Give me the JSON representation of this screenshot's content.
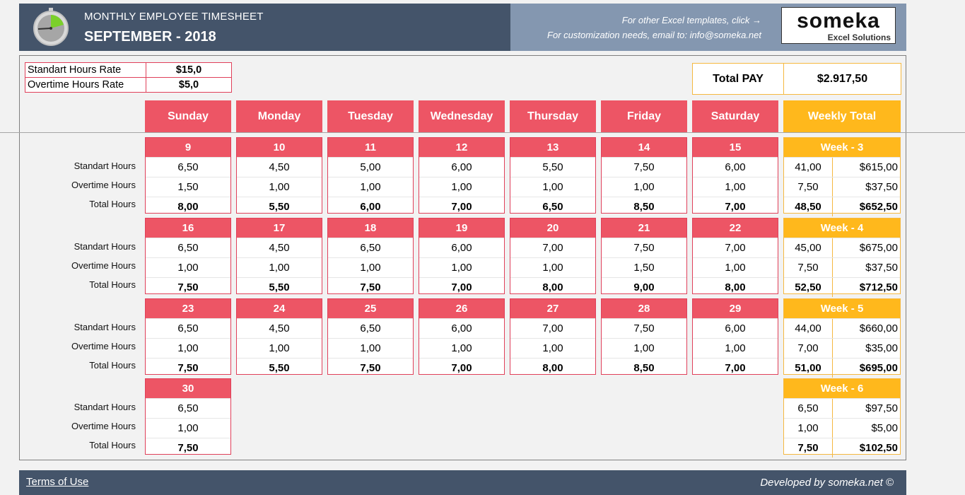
{
  "header": {
    "subtitle": "MONTHLY EMPLOYEE TIMESHEET",
    "title": "SEPTEMBER - 2018",
    "link_templates": "For other Excel templates, click →",
    "link_email": "For customization needs, email to: info@someka.net",
    "brand_name": "someka",
    "brand_tagline": "Excel Solutions"
  },
  "rates": [
    {
      "label": "Standart Hours Rate",
      "value": "$15,0"
    },
    {
      "label": "Overtime Hours Rate",
      "value": "$5,0"
    }
  ],
  "total_pay": {
    "label": "Total PAY",
    "value": "$2.917,50"
  },
  "day_headers": [
    "Sunday",
    "Monday",
    "Tuesday",
    "Wednesday",
    "Thursday",
    "Friday",
    "Saturday"
  ],
  "weekly_header": "Weekly Total",
  "row_labels": [
    "Standart Hours",
    "Overtime Hours",
    "Total Hours"
  ],
  "weeks": [
    {
      "label": "Week - 3",
      "days": [
        {
          "date": "9",
          "standard": "6,50",
          "overtime": "1,50",
          "total": "8,00"
        },
        {
          "date": "10",
          "standard": "4,50",
          "overtime": "1,00",
          "total": "5,50"
        },
        {
          "date": "11",
          "standard": "5,00",
          "overtime": "1,00",
          "total": "6,00"
        },
        {
          "date": "12",
          "standard": "6,00",
          "overtime": "1,00",
          "total": "7,00"
        },
        {
          "date": "13",
          "standard": "5,50",
          "overtime": "1,00",
          "total": "6,50"
        },
        {
          "date": "14",
          "standard": "7,50",
          "overtime": "1,00",
          "total": "8,50"
        },
        {
          "date": "15",
          "standard": "6,00",
          "overtime": "1,00",
          "total": "7,00"
        }
      ],
      "totals": {
        "std_hours": "41,00",
        "std_pay": "$615,00",
        "ot_hours": "7,50",
        "ot_pay": "$37,50",
        "tot_hours": "48,50",
        "tot_pay": "$652,50"
      }
    },
    {
      "label": "Week - 4",
      "days": [
        {
          "date": "16",
          "standard": "6,50",
          "overtime": "1,00",
          "total": "7,50"
        },
        {
          "date": "17",
          "standard": "4,50",
          "overtime": "1,00",
          "total": "5,50"
        },
        {
          "date": "18",
          "standard": "6,50",
          "overtime": "1,00",
          "total": "7,50"
        },
        {
          "date": "19",
          "standard": "6,00",
          "overtime": "1,00",
          "total": "7,00"
        },
        {
          "date": "20",
          "standard": "7,00",
          "overtime": "1,00",
          "total": "8,00"
        },
        {
          "date": "21",
          "standard": "7,50",
          "overtime": "1,50",
          "total": "9,00"
        },
        {
          "date": "22",
          "standard": "7,00",
          "overtime": "1,00",
          "total": "8,00"
        }
      ],
      "totals": {
        "std_hours": "45,00",
        "std_pay": "$675,00",
        "ot_hours": "7,50",
        "ot_pay": "$37,50",
        "tot_hours": "52,50",
        "tot_pay": "$712,50"
      }
    },
    {
      "label": "Week - 5",
      "days": [
        {
          "date": "23",
          "standard": "6,50",
          "overtime": "1,00",
          "total": "7,50"
        },
        {
          "date": "24",
          "standard": "4,50",
          "overtime": "1,00",
          "total": "5,50"
        },
        {
          "date": "25",
          "standard": "6,50",
          "overtime": "1,00",
          "total": "7,50"
        },
        {
          "date": "26",
          "standard": "6,00",
          "overtime": "1,00",
          "total": "7,00"
        },
        {
          "date": "27",
          "standard": "7,00",
          "overtime": "1,00",
          "total": "8,00"
        },
        {
          "date": "28",
          "standard": "7,50",
          "overtime": "1,00",
          "total": "8,50"
        },
        {
          "date": "29",
          "standard": "6,00",
          "overtime": "1,00",
          "total": "7,00"
        }
      ],
      "totals": {
        "std_hours": "44,00",
        "std_pay": "$660,00",
        "ot_hours": "7,00",
        "ot_pay": "$35,00",
        "tot_hours": "51,00",
        "tot_pay": "$695,00"
      }
    },
    {
      "label": "Week - 6",
      "days": [
        {
          "date": "30",
          "standard": "6,50",
          "overtime": "1,00",
          "total": "7,50"
        }
      ],
      "totals": {
        "std_hours": "6,50",
        "std_pay": "$97,50",
        "ot_hours": "1,00",
        "ot_pay": "$5,00",
        "tot_hours": "7,50",
        "tot_pay": "$102,50"
      }
    }
  ],
  "footer": {
    "terms": "Terms of Use",
    "developed": "Developed by someka.net ©"
  },
  "colors": {
    "header_bg": "#44546a",
    "day_red": "#ed5565",
    "weekly_orange": "#ffb81c",
    "link_panel": "#8497b0"
  }
}
